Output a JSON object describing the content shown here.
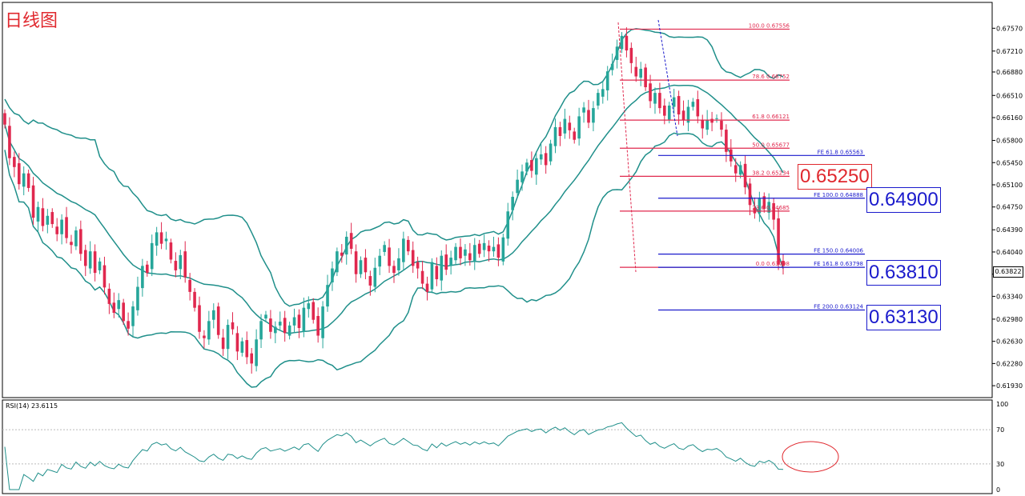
{
  "chart_title": "日线图",
  "rsi_label": "RSI(14) 23.6115",
  "current_price": "0.63822",
  "big_labels": [
    {
      "text": "0.65250",
      "color": "#e0282e",
      "price": 0.6525
    },
    {
      "text": "0.64900",
      "color": "#1a1acc",
      "price": 0.649
    },
    {
      "text": "0.63810",
      "color": "#1a1acc",
      "price": 0.6381
    },
    {
      "text": "0.63130",
      "color": "#1a1acc",
      "price": 0.6313
    }
  ],
  "colors": {
    "bull": "#26a69a",
    "bear": "#e0284e",
    "band": "#1f8f8a",
    "fib_red": "#e0284e",
    "fe_blue": "#1a1acc"
  },
  "chart_data": {
    "type": "candlestick",
    "price_axis": {
      "ylim": [
        0.6178,
        0.6794
      ],
      "ticks": [
        "0.67570",
        "0.67210",
        "0.66880",
        "0.66510",
        "0.66160",
        "0.65800",
        "0.65450",
        "0.65100",
        "0.64750",
        "0.64390",
        "0.64040",
        "0.63690",
        "0.63340",
        "0.62980",
        "0.62630",
        "0.62280",
        "0.61930"
      ]
    },
    "rsi_axis": {
      "ylim": [
        0,
        100
      ],
      "ticks": [
        "100",
        "70",
        "30",
        "0"
      ],
      "levels": [
        70,
        30
      ]
    },
    "fib_retracement": [
      {
        "label": "100.0  0.67556",
        "price": 0.67556
      },
      {
        "label": "78.6  0.66752",
        "price": 0.66752
      },
      {
        "label": "61.8  0.66121",
        "price": 0.66121
      },
      {
        "label": "50.0  0.65677",
        "price": 0.65677
      },
      {
        "label": "38.2  0.65234",
        "price": 0.65234
      },
      {
        "label": "23.6  0.64685",
        "price": 0.64685
      },
      {
        "label": "0.0  0.63798",
        "price": 0.63798
      }
    ],
    "fib_expansion": [
      {
        "label": "FE 61.8  0.65563",
        "price": 0.65563
      },
      {
        "label": "FE 100.0  0.64888",
        "price": 0.64888
      },
      {
        "label": "FE 150.0  0.64006",
        "price": 0.64006
      },
      {
        "label": "FE 161.8  0.63798",
        "price": 0.63798
      },
      {
        "label": "FE 200.0  0.63124",
        "price": 0.63124
      }
    ],
    "closes": [
      0.6605,
      0.6552,
      0.6538,
      0.6511,
      0.6528,
      0.6505,
      0.6458,
      0.6475,
      0.6445,
      0.6461,
      0.6448,
      0.6432,
      0.6455,
      0.6426,
      0.6415,
      0.6438,
      0.6401,
      0.6382,
      0.6405,
      0.6371,
      0.6389,
      0.6348,
      0.6322,
      0.6308,
      0.6328,
      0.6295,
      0.6283,
      0.6318,
      0.6349,
      0.6382,
      0.6371,
      0.6418,
      0.6435,
      0.6417,
      0.6425,
      0.6392,
      0.6375,
      0.6399,
      0.6364,
      0.6341,
      0.6316,
      0.6278,
      0.6268,
      0.6295,
      0.6312,
      0.6273,
      0.6251,
      0.6289,
      0.6282,
      0.6247,
      0.6263,
      0.6238,
      0.6228,
      0.6266,
      0.6295,
      0.6305,
      0.6278,
      0.6286,
      0.6294,
      0.6276,
      0.6288,
      0.6301,
      0.6284,
      0.6316,
      0.6323,
      0.6297,
      0.6272,
      0.6318,
      0.6352,
      0.6378,
      0.6405,
      0.6398,
      0.6428,
      0.6409,
      0.6369,
      0.6391,
      0.6372,
      0.6351,
      0.6379,
      0.6398,
      0.6415,
      0.6382,
      0.6371,
      0.6394,
      0.6425,
      0.6405,
      0.6382,
      0.6378,
      0.6354,
      0.6341,
      0.6388,
      0.6361,
      0.6398,
      0.6376,
      0.6395,
      0.6412,
      0.6394,
      0.6408,
      0.6391,
      0.6415,
      0.6401,
      0.6418,
      0.6405,
      0.6412,
      0.6395,
      0.6427,
      0.6468,
      0.6491,
      0.6518,
      0.6531,
      0.6545,
      0.6532,
      0.6552,
      0.6558,
      0.6541,
      0.6575,
      0.6601,
      0.6587,
      0.6614,
      0.6596,
      0.6581,
      0.6618,
      0.6632,
      0.6608,
      0.6631,
      0.6655,
      0.6661,
      0.6689,
      0.6701,
      0.6728,
      0.6745,
      0.6722,
      0.6702,
      0.6681,
      0.6693,
      0.6664,
      0.6642,
      0.6655,
      0.6631,
      0.6619,
      0.6635,
      0.6648,
      0.6621,
      0.6612,
      0.6633,
      0.6641,
      0.6618,
      0.6599,
      0.6612,
      0.6608,
      0.6615,
      0.6597,
      0.6562,
      0.6547,
      0.6528,
      0.6541,
      0.6506,
      0.6478,
      0.6465,
      0.6488,
      0.6472,
      0.6483,
      0.6455,
      0.6384,
      0.6382
    ]
  }
}
